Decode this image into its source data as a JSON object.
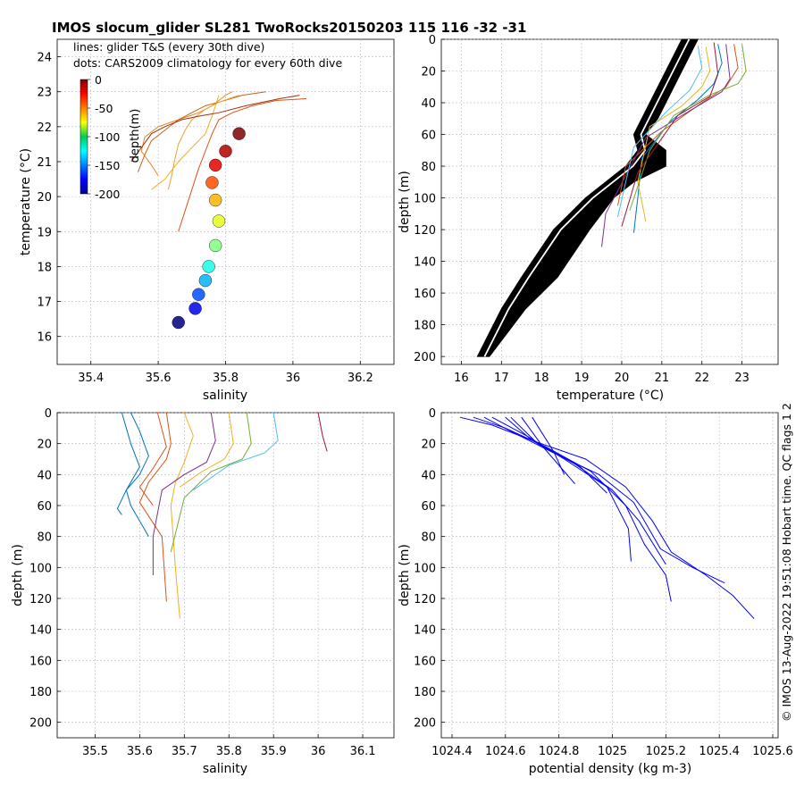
{
  "title": "IMOS slocum_glider SL281 TwoRocks20150203 115  116  -32  -31",
  "credit": "© IMOS 13-Aug-2022 19:51:08 Hobart time. QC flags 1  2",
  "legend": {
    "line1": "lines: glider T&S (every 30th dive)",
    "line2": "dots: CARS2009 climatology for every 60th dive"
  },
  "colors": {
    "grid": "#b8b8c8",
    "glider_series": [
      "#0072bd",
      "#d95319",
      "#edb120",
      "#7e2f8e",
      "#77ac30",
      "#4dbeee",
      "#a2142f"
    ],
    "density": "#0000ff",
    "climatology": "#000000"
  },
  "chart_data": [
    {
      "id": "ts",
      "type": "scatter",
      "xlabel": "salinity",
      "ylabel": "temperature (°C)",
      "xlim": [
        35.3,
        36.3
      ],
      "ylim": [
        15.2,
        24.5
      ],
      "xticks": [
        35.4,
        35.6,
        35.8,
        36,
        36.2
      ],
      "xticklabels": [
        "35.4",
        "35.6",
        "35.8",
        "36",
        "36.2"
      ],
      "yticks": [
        16,
        17,
        18,
        19,
        20,
        21,
        22,
        23,
        24
      ],
      "yticklabels": [
        "16",
        "17",
        "18",
        "19",
        "20",
        "21",
        "22",
        "23",
        "24"
      ],
      "colorbar": {
        "label": "depth(m)",
        "ticks": [
          0,
          -50,
          -100,
          -150,
          -200
        ],
        "ticklabels": [
          "0",
          "-50",
          "-100",
          "-150",
          "-200"
        ]
      },
      "climatology_dots": [
        {
          "depth": -200,
          "s": 35.66,
          "t": 16.4
        },
        {
          "depth": -180,
          "s": 35.71,
          "t": 16.8
        },
        {
          "depth": -160,
          "s": 35.72,
          "t": 17.2
        },
        {
          "depth": -140,
          "s": 35.74,
          "t": 17.6
        },
        {
          "depth": -120,
          "s": 35.75,
          "t": 18.0
        },
        {
          "depth": -100,
          "s": 35.77,
          "t": 18.6
        },
        {
          "depth": -80,
          "s": 35.78,
          "t": 19.3
        },
        {
          "depth": -60,
          "s": 35.77,
          "t": 19.9
        },
        {
          "depth": -40,
          "s": 35.76,
          "t": 20.4
        },
        {
          "depth": -20,
          "s": 35.77,
          "t": 20.9
        },
        {
          "depth": -10,
          "s": 35.8,
          "t": 21.3
        },
        {
          "depth": 0,
          "s": 35.84,
          "t": 21.8
        }
      ],
      "glider_lines": [
        {
          "s": [
            35.66,
            35.68,
            35.7,
            35.72,
            35.74,
            35.76,
            35.78,
            35.82,
            35.88,
            35.95,
            36.04
          ],
          "t": [
            19.0,
            19.6,
            20.2,
            20.8,
            21.3,
            21.8,
            22.2,
            22.4,
            22.6,
            22.75,
            22.8
          ]
        },
        {
          "s": [
            35.6,
            35.58,
            35.55,
            35.56,
            35.6,
            35.66,
            35.72,
            35.76,
            35.8,
            35.82
          ],
          "t": [
            20.6,
            20.9,
            21.3,
            21.7,
            22.0,
            22.2,
            22.4,
            22.6,
            22.9,
            23.0
          ]
        },
        {
          "s": [
            35.58,
            35.62,
            35.66,
            35.7,
            35.74,
            35.76,
            35.78
          ],
          "t": [
            20.2,
            20.5,
            21.0,
            21.4,
            21.8,
            22.3,
            22.9
          ]
        },
        {
          "s": [
            35.54,
            35.56,
            35.58,
            35.62,
            35.66,
            35.7,
            35.74,
            35.78,
            35.85,
            35.92
          ],
          "t": [
            20.7,
            21.2,
            21.6,
            21.9,
            22.2,
            22.4,
            22.6,
            22.7,
            22.9,
            23.0
          ]
        },
        {
          "s": [
            35.63,
            35.64,
            35.65,
            35.66,
            35.68,
            35.7,
            35.74,
            35.78,
            35.84
          ],
          "t": [
            20.2,
            20.6,
            21.1,
            21.5,
            21.9,
            22.2,
            22.5,
            22.7,
            22.9
          ]
        },
        {
          "s": [
            35.52,
            35.55,
            35.58,
            35.62,
            35.67,
            35.72,
            35.78,
            35.86,
            35.96,
            36.02
          ],
          "t": [
            21.0,
            21.4,
            21.8,
            22.0,
            22.2,
            22.3,
            22.4,
            22.6,
            22.8,
            22.9
          ]
        }
      ]
    },
    {
      "id": "temp-depth",
      "type": "line",
      "xlabel": "temperature (°C)",
      "ylabel": "depth (m)",
      "xlim": [
        15.5,
        23.9
      ],
      "ylim": [
        205,
        0
      ],
      "xticks": [
        16,
        17,
        18,
        19,
        20,
        21,
        22,
        23
      ],
      "xticklabels": [
        "16",
        "17",
        "18",
        "19",
        "20",
        "21",
        "22",
        "23"
      ],
      "yticks": [
        0,
        20,
        40,
        60,
        80,
        100,
        120,
        140,
        160,
        180,
        200
      ],
      "yticklabels": [
        "0",
        "20",
        "40",
        "60",
        "80",
        "100",
        "120",
        "140",
        "160",
        "180",
        "200"
      ],
      "climatology_band": {
        "depth": [
          0,
          10,
          20,
          30,
          40,
          50,
          60,
          70,
          80,
          90,
          100,
          120,
          150,
          170,
          200
        ],
        "t_left": [
          21.5,
          21.3,
          21.1,
          20.9,
          20.7,
          20.5,
          20.3,
          20.4,
          20.1,
          19.6,
          19.1,
          18.3,
          17.5,
          17.0,
          16.4
        ],
        "t_right": [
          21.9,
          21.7,
          21.5,
          21.3,
          21.1,
          20.9,
          20.6,
          21.1,
          21.1,
          20.3,
          19.8,
          19.2,
          18.4,
          17.6,
          16.7
        ]
      },
      "glider_profiles": [
        {
          "t": [
            22.4,
            22.5,
            22.3,
            21.9,
            21.2,
            20.5,
            20.4,
            20.3
          ],
          "d": [
            3,
            15,
            28,
            38,
            52,
            75,
            100,
            122
          ]
        },
        {
          "t": [
            22.8,
            22.9,
            22.6,
            22.0,
            21.0,
            20.1,
            19.9
          ],
          "d": [
            3,
            18,
            30,
            40,
            58,
            80,
            105
          ]
        },
        {
          "t": [
            22.1,
            22.2,
            22.0,
            21.5,
            20.7,
            20.4,
            20.6
          ],
          "d": [
            5,
            20,
            30,
            42,
            55,
            90,
            115
          ]
        },
        {
          "t": [
            22.6,
            22.7,
            22.5,
            21.7,
            20.6,
            19.6,
            19.5
          ],
          "d": [
            3,
            25,
            33,
            45,
            62,
            110,
            131
          ]
        },
        {
          "t": [
            23.0,
            23.1,
            22.9,
            22.2,
            21.3,
            20.7,
            20.2
          ],
          "d": [
            3,
            20,
            28,
            35,
            48,
            70,
            108
          ]
        },
        {
          "t": [
            21.9,
            22.0,
            21.7,
            21.1,
            20.3,
            19.9
          ],
          "d": [
            4,
            18,
            32,
            46,
            68,
            112
          ]
        },
        {
          "t": [
            22.3,
            22.4,
            22.2,
            21.4,
            20.4,
            20.0
          ],
          "d": [
            2,
            22,
            36,
            48,
            84,
            118
          ]
        }
      ]
    },
    {
      "id": "sal-depth",
      "type": "line",
      "xlabel": "salinity",
      "ylabel": "depth (m)",
      "xlim": [
        35.415,
        36.17
      ],
      "ylim": [
        210,
        0
      ],
      "xticks": [
        35.5,
        35.6,
        35.7,
        35.8,
        35.9,
        36,
        36.1
      ],
      "xticklabels": [
        "35.5",
        "35.6",
        "35.7",
        "35.8",
        "35.9",
        "36",
        "36.1"
      ],
      "yticks": [
        0,
        20,
        40,
        60,
        80,
        100,
        120,
        140,
        160,
        180,
        200
      ],
      "yticklabels": [
        "0",
        "20",
        "40",
        "60",
        "80",
        "100",
        "120",
        "140",
        "160",
        "180",
        "200"
      ],
      "glider_profiles": [
        {
          "s": [
            35.58,
            35.6,
            35.62,
            35.6,
            35.57,
            35.58,
            35.6,
            35.62
          ],
          "d": [
            0,
            12,
            28,
            40,
            50,
            60,
            70,
            80
          ]
        },
        {
          "s": [
            35.66,
            35.67,
            35.66,
            35.62,
            35.6,
            35.65,
            35.66
          ],
          "d": [
            0,
            20,
            30,
            45,
            58,
            80,
            122
          ]
        },
        {
          "s": [
            35.7,
            35.72,
            35.7,
            35.68,
            35.67,
            35.68,
            35.69
          ],
          "d": [
            0,
            15,
            32,
            45,
            60,
            100,
            133
          ]
        },
        {
          "s": [
            35.76,
            35.77,
            35.75,
            35.7,
            35.65,
            35.63,
            35.63
          ],
          "d": [
            0,
            18,
            32,
            40,
            50,
            80,
            105
          ]
        },
        {
          "s": [
            35.84,
            35.85,
            35.83,
            35.76,
            35.7,
            35.67
          ],
          "d": [
            0,
            20,
            30,
            38,
            55,
            90
          ]
        },
        {
          "s": [
            35.9,
            35.91,
            35.88,
            35.8,
            35.72
          ],
          "d": [
            0,
            18,
            26,
            34,
            50
          ]
        },
        {
          "s": [
            36.0,
            36.01,
            36.02
          ],
          "d": [
            0,
            15,
            25
          ]
        },
        {
          "s": [
            35.56,
            35.58,
            35.6,
            35.57,
            35.55,
            35.56
          ],
          "d": [
            0,
            20,
            35,
            50,
            62,
            66
          ]
        },
        {
          "s": [
            35.64,
            35.66,
            35.63,
            35.6,
            35.63
          ],
          "d": [
            0,
            22,
            36,
            48,
            60
          ]
        },
        {
          "s": [
            35.8,
            35.81,
            35.79,
            35.74,
            35.69
          ],
          "d": [
            0,
            20,
            30,
            38,
            48
          ]
        }
      ]
    },
    {
      "id": "dens-depth",
      "type": "line",
      "xlabel": "potential density (kg m-3)",
      "ylabel": "depth (m)",
      "xlim": [
        1024.36,
        1025.62
      ],
      "ylim": [
        210,
        0
      ],
      "xticks": [
        1024.4,
        1024.6,
        1024.8,
        1025,
        1025.2,
        1025.4,
        1025.6
      ],
      "xticklabels": [
        "1024.4",
        "1024.6",
        "1024.8",
        "1025",
        "1025.2",
        "1025.4",
        "1025.6"
      ],
      "yticks": [
        0,
        20,
        40,
        60,
        80,
        100,
        120,
        140,
        160,
        180,
        200
      ],
      "yticklabels": [
        "0",
        "20",
        "40",
        "60",
        "80",
        "100",
        "120",
        "140",
        "160",
        "180",
        "200"
      ],
      "glider_profiles": [
        {
          "rho": [
            1024.43,
            1024.55,
            1024.7,
            1024.9,
            1025.05,
            1025.15,
            1025.22,
            1025.35,
            1025.45,
            1025.53
          ],
          "d": [
            3,
            8,
            18,
            30,
            48,
            70,
            90,
            105,
            118,
            133
          ]
        },
        {
          "rho": [
            1024.48,
            1024.6,
            1024.75,
            1024.92,
            1025.05,
            1025.12,
            1025.2,
            1025.22
          ],
          "d": [
            3,
            10,
            22,
            38,
            60,
            85,
            105,
            122
          ]
        },
        {
          "rho": [
            1024.52,
            1024.62,
            1024.78,
            1024.95,
            1025.08,
            1025.18,
            1025.3,
            1025.42
          ],
          "d": [
            3,
            12,
            26,
            40,
            58,
            88,
            100,
            110
          ]
        },
        {
          "rho": [
            1024.55,
            1024.68,
            1024.82,
            1024.98,
            1025.06,
            1025.07
          ],
          "d": [
            3,
            15,
            30,
            48,
            75,
            96
          ]
        },
        {
          "rho": [
            1024.6,
            1024.7,
            1024.85,
            1025.0,
            1025.1,
            1025.2
          ],
          "d": [
            3,
            18,
            32,
            50,
            70,
            98
          ]
        },
        {
          "rho": [
            1024.62,
            1024.72,
            1024.88,
            1024.98
          ],
          "d": [
            3,
            20,
            35,
            52
          ]
        },
        {
          "rho": [
            1024.66,
            1024.74,
            1024.82,
            1024.86
          ],
          "d": [
            3,
            22,
            38,
            46
          ]
        },
        {
          "rho": [
            1024.7,
            1024.78,
            1024.82
          ],
          "d": [
            3,
            25,
            40
          ]
        }
      ]
    }
  ]
}
